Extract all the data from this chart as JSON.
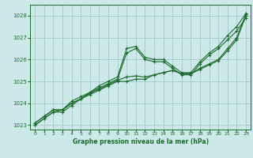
{
  "bg_color": "#cce8e8",
  "grid_color": "#aacccc",
  "line_color": "#1a6b2a",
  "marker_color": "#1a6b2a",
  "xlabel": "Graphe pression niveau de la mer (hPa)",
  "ylim": [
    1022.8,
    1028.5
  ],
  "xlim": [
    -0.5,
    23.5
  ],
  "yticks": [
    1023,
    1024,
    1025,
    1026,
    1027,
    1028
  ],
  "xticks": [
    0,
    1,
    2,
    3,
    4,
    5,
    6,
    7,
    8,
    9,
    10,
    11,
    12,
    13,
    14,
    15,
    16,
    17,
    18,
    19,
    20,
    21,
    22,
    23
  ],
  "series": [
    [
      1023.1,
      1023.4,
      1023.7,
      1023.7,
      1024.1,
      1024.3,
      1024.5,
      1024.8,
      1025.0,
      1025.2,
      1026.5,
      1026.6,
      1026.1,
      1026.0,
      1026.0,
      1025.7,
      1025.4,
      1025.4,
      1025.9,
      1026.3,
      1026.6,
      1027.1,
      1027.5,
      1028.1
    ],
    [
      1023.1,
      1023.4,
      1023.7,
      1023.7,
      1024.0,
      1024.2,
      1024.5,
      1024.7,
      1024.9,
      1025.1,
      1026.3,
      1026.5,
      1026.0,
      1025.9,
      1025.9,
      1025.6,
      1025.3,
      1025.3,
      1025.8,
      1026.2,
      1026.5,
      1026.9,
      1027.3,
      1027.9
    ],
    [
      1023.0,
      1023.3,
      1023.6,
      1023.6,
      1023.9,
      1024.2,
      1024.4,
      1024.6,
      1024.8,
      1025.0,
      1025.0,
      1025.1,
      1025.1,
      1025.3,
      1025.4,
      1025.5,
      1025.35,
      1025.35,
      1025.6,
      1025.8,
      1026.0,
      1026.5,
      1027.0,
      1028.05
    ],
    [
      1023.0,
      1023.3,
      1023.6,
      1023.7,
      1024.0,
      1024.2,
      1024.45,
      1024.65,
      1024.85,
      1025.05,
      1025.2,
      1025.25,
      1025.2,
      1025.3,
      1025.4,
      1025.5,
      1025.35,
      1025.35,
      1025.55,
      1025.75,
      1025.95,
      1026.4,
      1026.9,
      1028.0
    ]
  ]
}
